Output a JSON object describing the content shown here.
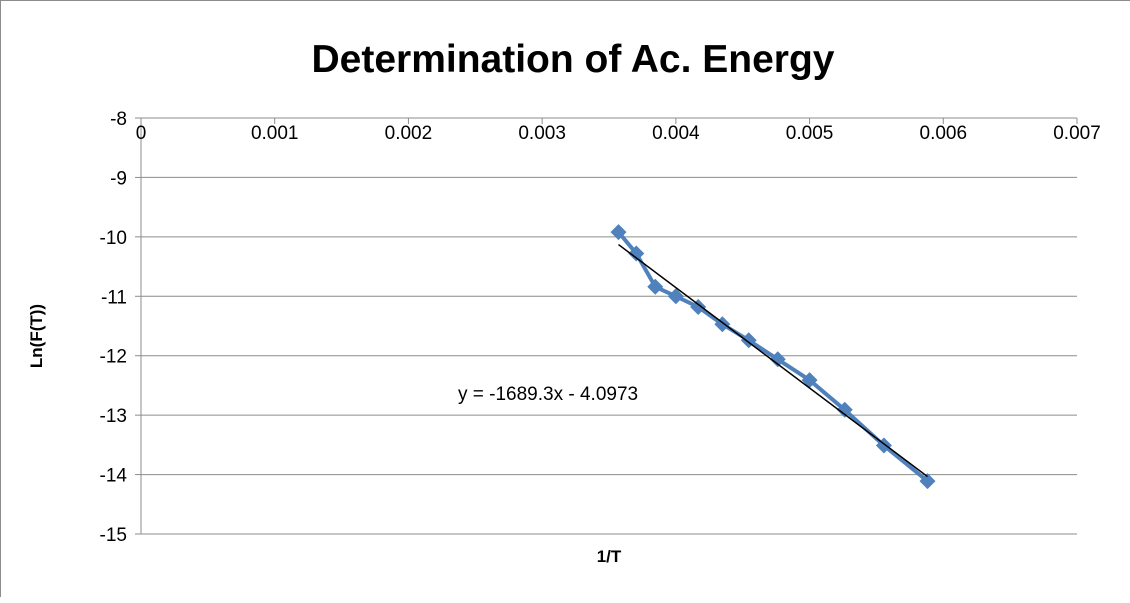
{
  "chart_data": {
    "type": "scatter",
    "title": "Determination of Ac. Energy",
    "xlabel": "1/T",
    "ylabel": "Ln(F(T))",
    "xlim": [
      0,
      0.007
    ],
    "ylim": [
      -15,
      -8
    ],
    "x_ticks": [
      "0",
      "0.001",
      "0.002",
      "0.003",
      "0.004",
      "0.005",
      "0.006",
      "0.007"
    ],
    "y_ticks": [
      "-8",
      "-9",
      "-10",
      "-11",
      "-12",
      "-13",
      "-14",
      "-15"
    ],
    "x_tick_values": [
      0,
      0.001,
      0.002,
      0.003,
      0.004,
      0.005,
      0.006,
      0.007
    ],
    "y_tick_values": [
      -8,
      -9,
      -10,
      -11,
      -12,
      -13,
      -14,
      -15
    ],
    "grid": "horizontal",
    "legend": "none",
    "series": [
      {
        "marker": "diamond",
        "connected": true,
        "color": "#4f81bd",
        "x": [
          0.003571,
          0.003704,
          0.003846,
          0.004,
          0.004167,
          0.004348,
          0.004545,
          0.004762,
          0.005,
          0.005263,
          0.005556,
          0.005882
        ],
        "y": [
          -9.92,
          -10.28,
          -10.84,
          -11.0,
          -11.18,
          -11.47,
          -11.74,
          -12.06,
          -12.41,
          -12.91,
          -13.51,
          -14.11
        ]
      }
    ],
    "trendline": {
      "type": "linear",
      "slope": -1689.3,
      "intercept": -4.0973,
      "x_range": [
        0.003571,
        0.005882
      ],
      "color": "#000000",
      "equation": "y = -1689.3x - 4.0973"
    }
  }
}
